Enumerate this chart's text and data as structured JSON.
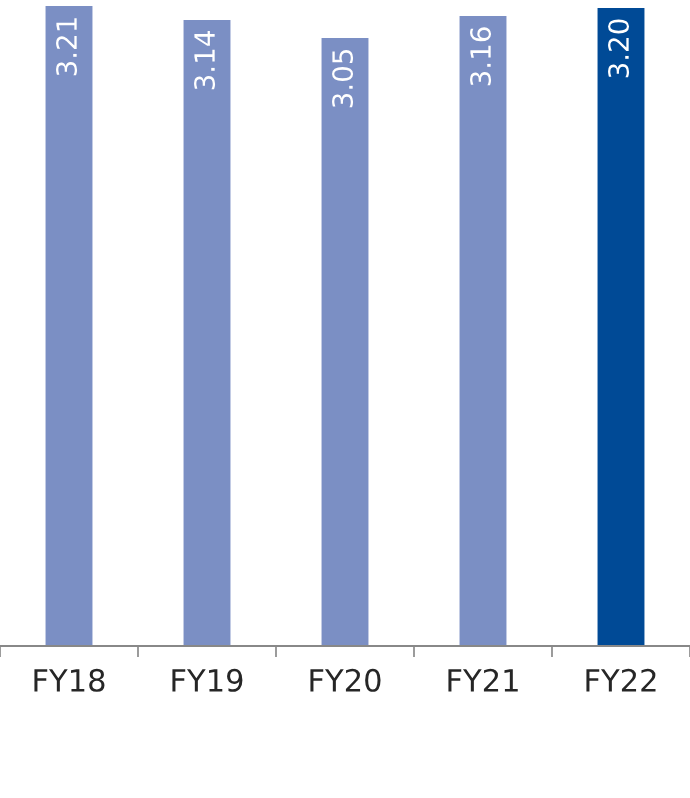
{
  "chart_data": {
    "type": "bar",
    "categories": [
      "FY18",
      "FY19",
      "FY20",
      "FY21",
      "FY22"
    ],
    "values": [
      3.21,
      3.14,
      3.05,
      3.16,
      3.2
    ],
    "value_labels": [
      "3.21",
      "3.14",
      "3.05",
      "3.16",
      "3.20"
    ],
    "colors": [
      "#7b8fc4",
      "#7b8fc4",
      "#7b8fc4",
      "#7b8fc4",
      "#004a96"
    ]
  }
}
